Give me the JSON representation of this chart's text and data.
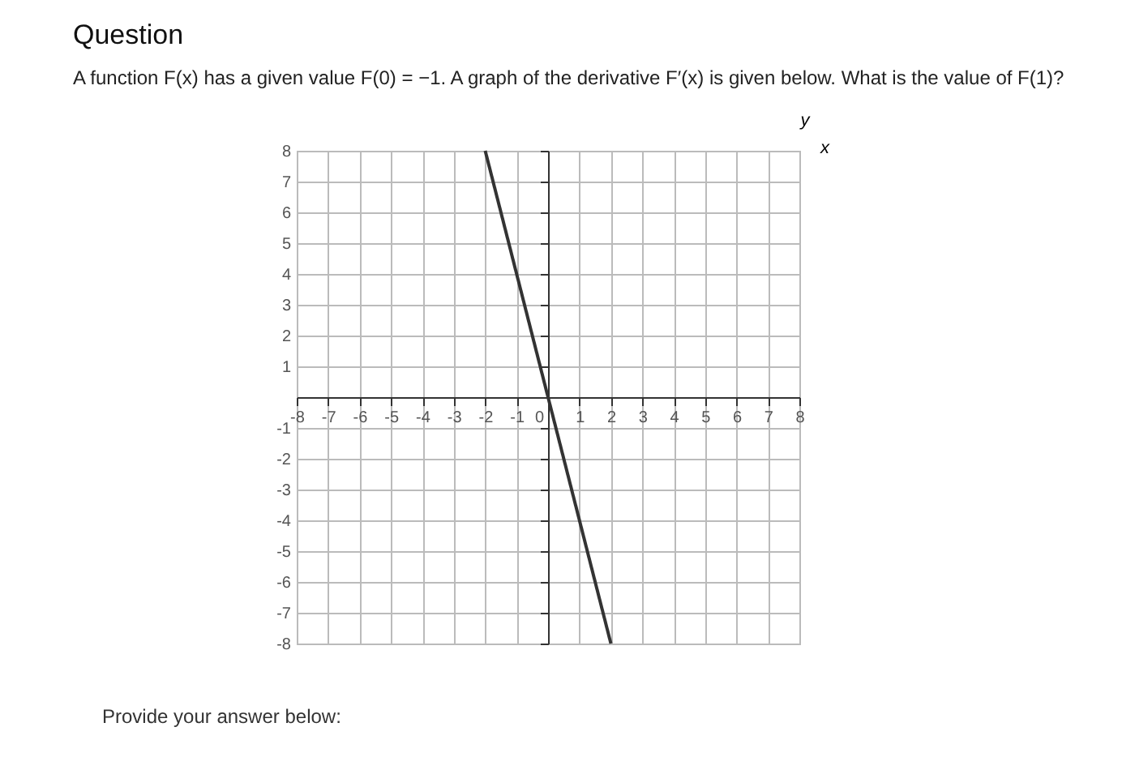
{
  "chart_data": {
    "type": "line",
    "title": "Question",
    "subtitle": "A function F(x) has a given value F(0) = −1. A graph of the derivative F′(x) is given below. What is the value of F(1)?",
    "xlabel": "x",
    "ylabel": "y",
    "x": [
      -2,
      2
    ],
    "series": [
      {
        "color": "#333333",
        "values": [
          8,
          -8
        ]
      }
    ],
    "xlim": [
      -8,
      8
    ],
    "ylim": [
      -8,
      8
    ],
    "xticks": [
      -8,
      -7,
      -6,
      -5,
      -4,
      -3,
      -2,
      -1,
      0,
      1,
      2,
      3,
      4,
      5,
      6,
      7,
      8
    ],
    "yticks": [
      -8,
      -7,
      -6,
      -5,
      -4,
      -3,
      -2,
      -1,
      1,
      2,
      3,
      4,
      5,
      6,
      7,
      8
    ],
    "grid": true,
    "marker": "none",
    "line_style": "solid",
    "annotations": [
      "Provide your answer below:"
    ]
  }
}
